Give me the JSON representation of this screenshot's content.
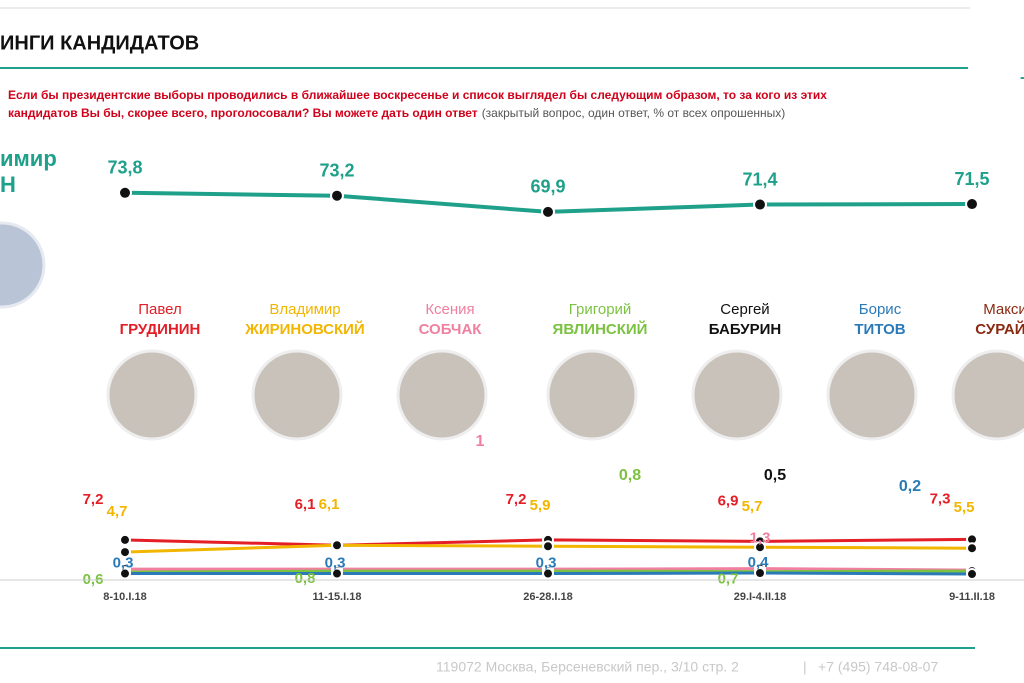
{
  "header": {
    "title": "ИНГИ КАНДИДАТОВ"
  },
  "question": {
    "main": "Если бы президентские выборы проводились в ближайшее воскресенье и список выглядел бы следующим образом, то за кого из этих",
    "main2": "кандидатов Вы бы, скорее всего, проголосовали? Вы можете дать один ответ",
    "note": "(закрытый вопрос, один ответ, % от всех опрошенных)"
  },
  "leader": {
    "line1": "имир",
    "line2": "Н"
  },
  "candidates": [
    {
      "first": "Павел",
      "last": "ГРУДИНИН",
      "color": "#e41e26"
    },
    {
      "first": "Владимир",
      "last": "ЖИРИНОВСКИЙ",
      "color": "#f2b600"
    },
    {
      "first": "Ксения",
      "last": "СОБЧАК",
      "color": "#f07fa0",
      "latest": 1,
      "latest_label": "1"
    },
    {
      "first": "Григорий",
      "last": "ЯВЛИНСКИЙ",
      "color": "#7cc242",
      "latest": 0.8,
      "latest_label": "0,8"
    },
    {
      "first": "Сергей",
      "last": "БАБУРИН",
      "color": "#111111",
      "latest": 0.5,
      "latest_label": "0,5"
    },
    {
      "first": "Борис",
      "last": "ТИТОВ",
      "color": "#2a7ab8",
      "latest": 0.2,
      "latest_label": "0,2"
    },
    {
      "first": "Макси",
      "last": "СУРАЙК",
      "color": "#8b2a12"
    }
  ],
  "chart_data": [
    {
      "type": "line",
      "categories": [
        "8-10.I.18",
        "11-15.I.18",
        "26-28.I.18",
        "29.I-4.II.18",
        "9-11.II.18"
      ],
      "ylim": [
        66,
        76
      ],
      "series": [
        {
          "color": "#1fa08a",
          "values": [
            73.8,
            73.2,
            69.9,
            71.4,
            71.5
          ],
          "value_labels": [
            "73,8",
            "73,2",
            "69,9",
            "71,4",
            "71,5"
          ]
        }
      ]
    },
    {
      "type": "line",
      "categories": [
        "8-10.I.18",
        "11-15.I.18",
        "26-28.I.18",
        "29.I-4.II.18",
        "9-11.II.18"
      ],
      "ylim": [
        0,
        8
      ],
      "series": [
        {
          "color": "#e41e26",
          "values": [
            7.2,
            6.1,
            7.2,
            6.9,
            7.3
          ],
          "value_labels": [
            "7,2",
            "6,1",
            "7,2",
            "6,9",
            "7,3"
          ]
        },
        {
          "color": "#f2b600",
          "values": [
            4.7,
            6.1,
            5.9,
            5.7,
            5.5
          ],
          "value_labels": [
            "4,7",
            "6,1",
            "5,9",
            "5,7",
            "5,5"
          ]
        },
        {
          "color": "#f07fa0",
          "values": [
            1.2,
            1.2,
            1.2,
            1.3,
            1
          ],
          "value_labels": [
            null,
            null,
            null,
            "1,3",
            null
          ]
        },
        {
          "color": "#7cc242",
          "values": [
            0.6,
            0.8,
            0.8,
            0.7,
            0.8
          ],
          "value_labels": [
            "0,6",
            "0,8",
            null,
            "0,7",
            null
          ]
        },
        {
          "color": "#2a7ab8",
          "values": [
            0.3,
            0.3,
            0.3,
            0.4,
            0.2
          ],
          "value_labels": [
            "0,3",
            "0,3",
            "0,3",
            "0,4",
            null
          ]
        }
      ]
    }
  ],
  "footer": {
    "address": "119072 Москва, Берсеневский пер., 3/10 стр. 2",
    "sep": "|",
    "phone": "+7 (495) 748-08-07"
  }
}
